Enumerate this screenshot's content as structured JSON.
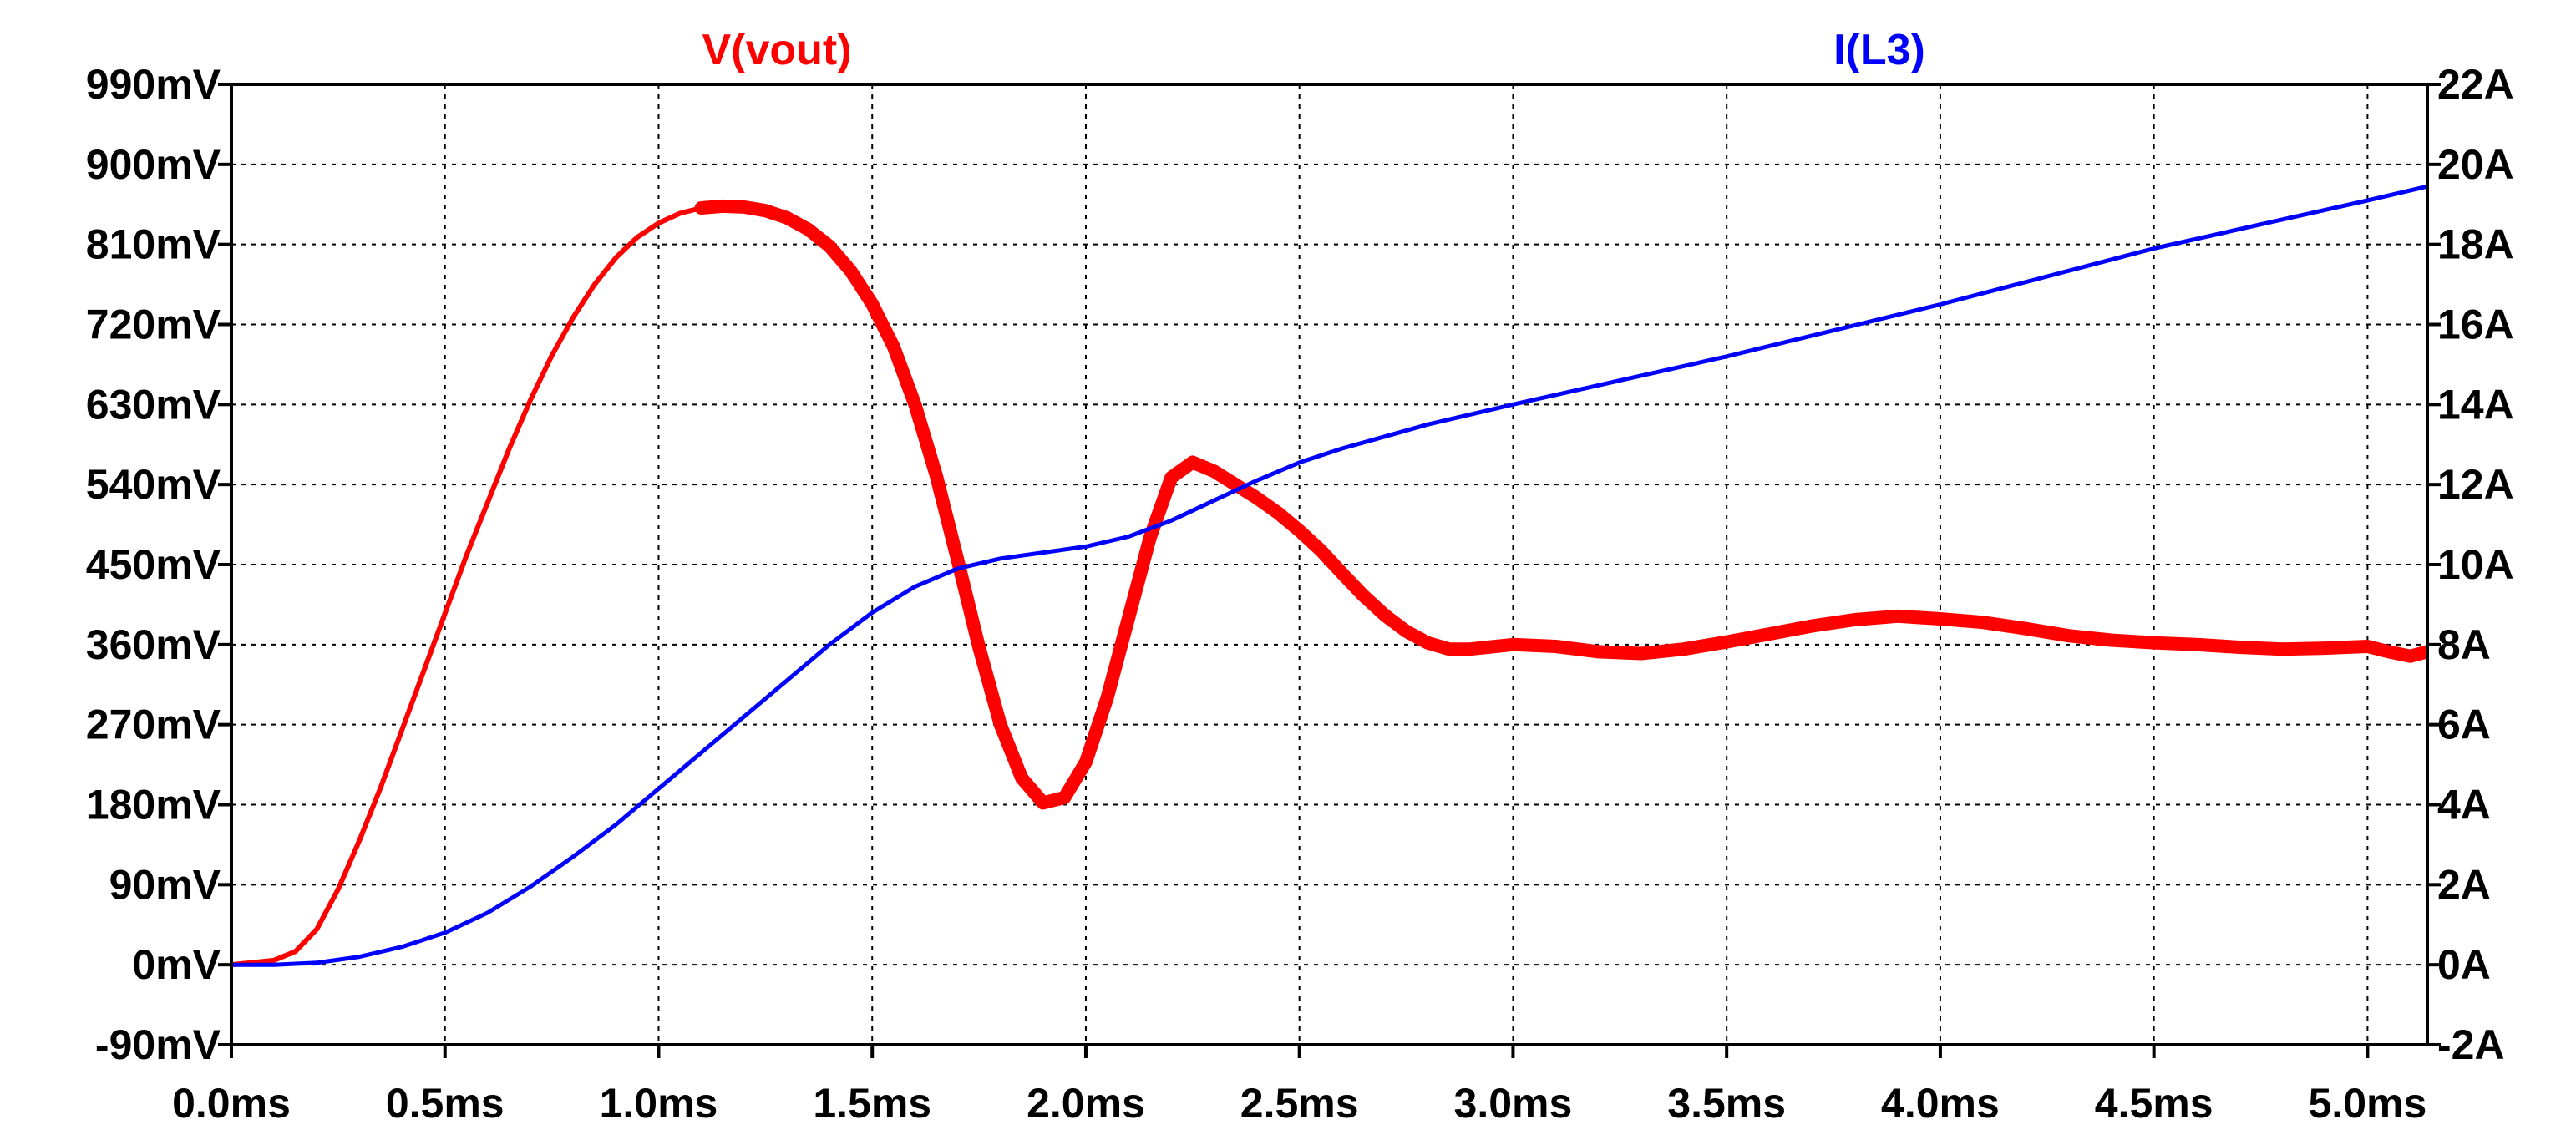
{
  "chart_data": {
    "type": "line",
    "x_axis": {
      "ticks": [
        "0.0ms",
        "0.5ms",
        "1.0ms",
        "1.5ms",
        "2.0ms",
        "2.5ms",
        "3.0ms",
        "3.5ms",
        "4.0ms",
        "4.5ms",
        "5.0ms"
      ],
      "tick_values": [
        0.0,
        0.5,
        1.0,
        1.5,
        2.0,
        2.5,
        3.0,
        3.5,
        4.0,
        4.5,
        5.0
      ],
      "unit": "ms",
      "range": [
        0.0,
        5.14
      ]
    },
    "y_left": {
      "ticks": [
        "-90mV",
        "0mV",
        "90mV",
        "180mV",
        "270mV",
        "360mV",
        "450mV",
        "540mV",
        "630mV",
        "720mV",
        "810mV",
        "900mV",
        "990mV"
      ],
      "tick_values": [
        -90,
        0,
        90,
        180,
        270,
        360,
        450,
        540,
        630,
        720,
        810,
        900,
        990
      ],
      "unit": "mV",
      "range": [
        -90,
        990
      ]
    },
    "y_right": {
      "ticks": [
        "-2A",
        "0A",
        "2A",
        "4A",
        "6A",
        "8A",
        "10A",
        "12A",
        "14A",
        "16A",
        "18A",
        "20A",
        "22A"
      ],
      "tick_values": [
        -2,
        0,
        2,
        4,
        6,
        8,
        10,
        12,
        14,
        16,
        18,
        20,
        22
      ],
      "unit": "A",
      "range": [
        -2,
        22
      ]
    },
    "grid": true,
    "series": [
      {
        "name": "V(vout)",
        "axis": "left",
        "color": "#ff0000",
        "points": [
          [
            0.0,
            0
          ],
          [
            0.1,
            5
          ],
          [
            0.15,
            15
          ],
          [
            0.2,
            40
          ],
          [
            0.25,
            85
          ],
          [
            0.3,
            140
          ],
          [
            0.35,
            200
          ],
          [
            0.4,
            265
          ],
          [
            0.45,
            330
          ],
          [
            0.5,
            395
          ],
          [
            0.55,
            460
          ],
          [
            0.6,
            520
          ],
          [
            0.65,
            580
          ],
          [
            0.7,
            635
          ],
          [
            0.75,
            685
          ],
          [
            0.8,
            728
          ],
          [
            0.85,
            765
          ],
          [
            0.9,
            795
          ],
          [
            0.95,
            818
          ],
          [
            1.0,
            834
          ],
          [
            1.05,
            845
          ],
          [
            1.1,
            851
          ],
          [
            1.15,
            853
          ],
          [
            1.2,
            852
          ],
          [
            1.25,
            848
          ],
          [
            1.3,
            840
          ],
          [
            1.35,
            827
          ],
          [
            1.4,
            808
          ],
          [
            1.45,
            780
          ],
          [
            1.5,
            743
          ],
          [
            1.55,
            695
          ],
          [
            1.6,
            630
          ],
          [
            1.65,
            550
          ],
          [
            1.7,
            455
          ],
          [
            1.75,
            357
          ],
          [
            1.8,
            270
          ],
          [
            1.85,
            210
          ],
          [
            1.9,
            182
          ],
          [
            1.95,
            188
          ],
          [
            2.0,
            228
          ],
          [
            2.05,
            300
          ],
          [
            2.1,
            390
          ],
          [
            2.15,
            480
          ],
          [
            2.2,
            548
          ],
          [
            2.25,
            565
          ],
          [
            2.3,
            555
          ],
          [
            2.35,
            540
          ],
          [
            2.4,
            525
          ],
          [
            2.45,
            508
          ],
          [
            2.5,
            488
          ],
          [
            2.55,
            466
          ],
          [
            2.6,
            440
          ],
          [
            2.65,
            415
          ],
          [
            2.7,
            393
          ],
          [
            2.75,
            375
          ],
          [
            2.8,
            362
          ],
          [
            2.85,
            355
          ],
          [
            2.9,
            355
          ],
          [
            3.0,
            360
          ],
          [
            3.1,
            358
          ],
          [
            3.2,
            352
          ],
          [
            3.3,
            350
          ],
          [
            3.4,
            355
          ],
          [
            3.5,
            363
          ],
          [
            3.6,
            372
          ],
          [
            3.7,
            381
          ],
          [
            3.8,
            388
          ],
          [
            3.9,
            392
          ],
          [
            4.0,
            389
          ],
          [
            4.1,
            385
          ],
          [
            4.2,
            378
          ],
          [
            4.3,
            370
          ],
          [
            4.4,
            365
          ],
          [
            4.5,
            362
          ],
          [
            4.6,
            360
          ],
          [
            4.7,
            357
          ],
          [
            4.8,
            355
          ],
          [
            4.9,
            356
          ],
          [
            5.0,
            358
          ],
          [
            5.05,
            352
          ],
          [
            5.1,
            347
          ],
          [
            5.14,
            352
          ]
        ]
      },
      {
        "name": "I(L3)",
        "axis": "right",
        "color": "#0000ff",
        "points": [
          [
            0.0,
            0
          ],
          [
            0.1,
            0
          ],
          [
            0.2,
            0.05
          ],
          [
            0.3,
            0.2
          ],
          [
            0.4,
            0.45
          ],
          [
            0.5,
            0.8
          ],
          [
            0.6,
            1.3
          ],
          [
            0.7,
            1.95
          ],
          [
            0.8,
            2.7
          ],
          [
            0.9,
            3.5
          ],
          [
            1.0,
            4.4
          ],
          [
            1.1,
            5.3
          ],
          [
            1.2,
            6.2
          ],
          [
            1.3,
            7.1
          ],
          [
            1.4,
            8.0
          ],
          [
            1.5,
            8.8
          ],
          [
            1.6,
            9.45
          ],
          [
            1.7,
            9.9
          ],
          [
            1.8,
            10.15
          ],
          [
            1.9,
            10.3
          ],
          [
            2.0,
            10.45
          ],
          [
            2.1,
            10.7
          ],
          [
            2.2,
            11.1
          ],
          [
            2.3,
            11.6
          ],
          [
            2.4,
            12.1
          ],
          [
            2.5,
            12.55
          ],
          [
            2.6,
            12.9
          ],
          [
            2.7,
            13.2
          ],
          [
            2.8,
            13.5
          ],
          [
            2.9,
            13.75
          ],
          [
            3.0,
            14.0
          ],
          [
            3.25,
            14.6
          ],
          [
            3.5,
            15.2
          ],
          [
            3.75,
            15.85
          ],
          [
            4.0,
            16.5
          ],
          [
            4.25,
            17.2
          ],
          [
            4.5,
            17.9
          ],
          [
            4.75,
            18.5
          ],
          [
            5.0,
            19.1
          ],
          [
            5.14,
            19.45
          ]
        ]
      }
    ]
  }
}
